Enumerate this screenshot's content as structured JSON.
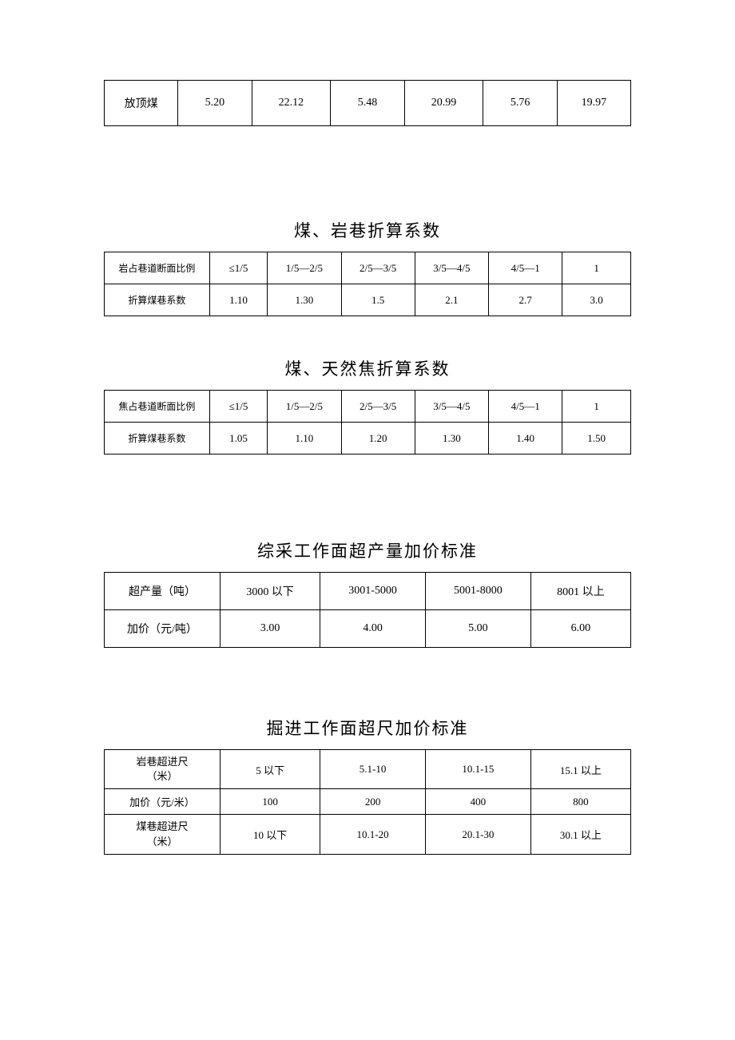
{
  "table1": {
    "columns": [
      "放顶煤",
      "5.20",
      "22.12",
      "5.48",
      "20.99",
      "5.76",
      "19.97"
    ],
    "col_widths": [
      "14%",
      "14%",
      "15%",
      "14%",
      "15%",
      "14%",
      "14%"
    ]
  },
  "table2": {
    "title": "煤、岩巷折算系数",
    "rows": [
      [
        "岩占巷道断面比例",
        "≤1/5",
        "1/5—2/5",
        "2/5—3/5",
        "3/5—4/5",
        "4/5—1",
        "1"
      ],
      [
        "折算煤巷系数",
        "1.10",
        "1.30",
        "1.5",
        "2.1",
        "2.7",
        "3.0"
      ]
    ],
    "col_widths": [
      "20%",
      "11%",
      "14%",
      "14%",
      "14%",
      "14%",
      "13%"
    ]
  },
  "table3": {
    "title": "煤、天然焦折算系数",
    "rows": [
      [
        "焦占巷道断面比例",
        "≤1/5",
        "1/5—2/5",
        "2/5—3/5",
        "3/5—4/5",
        "4/5—1",
        "1"
      ],
      [
        "折算煤巷系数",
        "1.05",
        "1.10",
        "1.20",
        "1.30",
        "1.40",
        "1.50"
      ]
    ],
    "col_widths": [
      "20%",
      "11%",
      "14%",
      "14%",
      "14%",
      "14%",
      "13%"
    ]
  },
  "table4": {
    "title": "综采工作面超产量加价标准",
    "rows": [
      [
        "超产量（吨）",
        "3000 以下",
        "3001-5000",
        "5001-8000",
        "8001 以上"
      ],
      [
        "加价（元/吨）",
        "3.00",
        "4.00",
        "5.00",
        "6.00"
      ]
    ],
    "col_widths": [
      "22%",
      "19%",
      "20%",
      "20%",
      "19%"
    ]
  },
  "table5": {
    "title": "掘进工作面超尺加价标准",
    "rows": [
      [
        "岩巷超进尺\n（米）",
        "5 以下",
        "5.1-10",
        "10.1-15",
        "15.1 以上"
      ],
      [
        "加价（元/米）",
        "100",
        "200",
        "400",
        "800"
      ],
      [
        "煤巷超进尺\n（米）",
        "10 以下",
        "10.1-20",
        "20.1-30",
        "30.1 以上"
      ]
    ],
    "col_widths": [
      "22%",
      "19%",
      "20%",
      "20%",
      "19%"
    ]
  }
}
